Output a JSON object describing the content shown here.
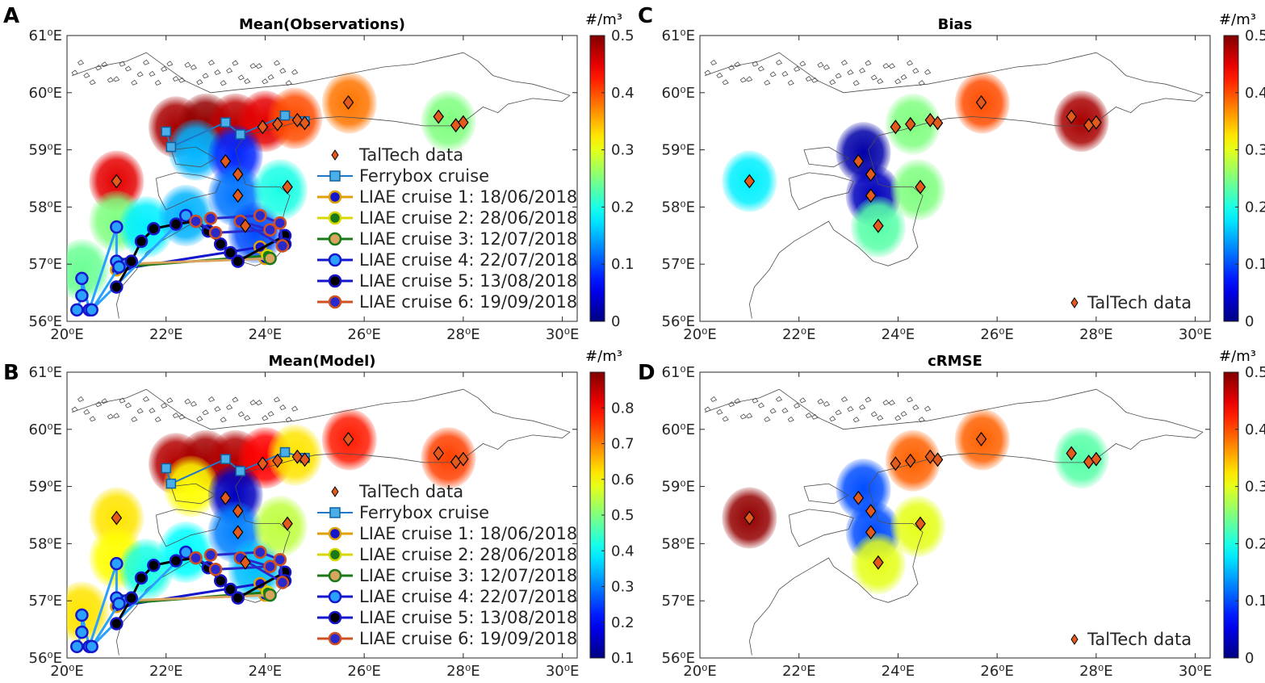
{
  "chart_data": [
    {
      "type": "map",
      "panel_label": "A",
      "title": "Mean(Observations)",
      "colorbar": {
        "unit": "#/m³",
        "min": 0,
        "max": 0.5,
        "ticks": [
          "0",
          "0.1",
          "0.2",
          "0.3",
          "0.4",
          "0.5"
        ]
      },
      "x_ticks": [
        "20⁰E",
        "22⁰E",
        "24⁰E",
        "26⁰E",
        "28⁰E",
        "30⁰E"
      ],
      "y_ticks": [
        "56⁰E",
        "57⁰E",
        "58⁰E",
        "59⁰E",
        "60⁰E",
        "61⁰E"
      ],
      "xlim": [
        20,
        30.3
      ],
      "ylim": [
        56,
        61
      ],
      "legend": [
        "TalTech data",
        "Ferrybox cruise",
        "LIAE cruise 1: 18/06/2018",
        "LIAE cruise 2: 28/06/2018",
        "LIAE cruise 3: 12/07/2018",
        "LIAE cruise 4: 22/07/2018",
        "LIAE cruise 5: 13/08/2018",
        "LIAE cruise 6: 19/09/2018"
      ],
      "blobs": [
        {
          "lon": 21.0,
          "lat": 58.45,
          "value": 0.45
        },
        {
          "lon": 21.0,
          "lat": 57.75,
          "value": 0.25
        },
        {
          "lon": 20.3,
          "lat": 56.9,
          "value": 0.24
        },
        {
          "lon": 21.6,
          "lat": 57.65,
          "value": 0.18
        },
        {
          "lon": 22.4,
          "lat": 57.85,
          "value": 0.15
        },
        {
          "lon": 22.2,
          "lat": 59.4,
          "value": 0.48
        },
        {
          "lon": 22.8,
          "lat": 59.45,
          "value": 0.49
        },
        {
          "lon": 23.4,
          "lat": 59.45,
          "value": 0.47
        },
        {
          "lon": 24.0,
          "lat": 59.5,
          "value": 0.45
        },
        {
          "lon": 24.6,
          "lat": 59.55,
          "value": 0.4
        },
        {
          "lon": 22.6,
          "lat": 59.0,
          "value": 0.15
        },
        {
          "lon": 23.4,
          "lat": 58.9,
          "value": 0.08
        },
        {
          "lon": 23.4,
          "lat": 58.2,
          "value": 0.12
        },
        {
          "lon": 23.8,
          "lat": 57.55,
          "value": 0.1
        },
        {
          "lon": 24.3,
          "lat": 58.3,
          "value": 0.2
        },
        {
          "lon": 25.7,
          "lat": 59.82,
          "value": 0.38
        },
        {
          "lon": 27.7,
          "lat": 59.5,
          "value": 0.25
        }
      ],
      "taltech": [
        [
          21.0,
          58.45
        ],
        [
          23.2,
          58.8
        ],
        [
          23.45,
          58.57
        ],
        [
          23.45,
          58.2
        ],
        [
          23.6,
          57.67
        ],
        [
          24.45,
          58.35
        ],
        [
          23.95,
          59.4
        ],
        [
          24.25,
          59.45
        ],
        [
          24.65,
          59.52
        ],
        [
          24.8,
          59.47
        ],
        [
          25.68,
          59.83
        ],
        [
          27.5,
          59.58
        ],
        [
          27.85,
          59.43
        ],
        [
          28.0,
          59.48
        ]
      ],
      "ferrybox": [
        [
          22.0,
          59.32
        ],
        [
          22.1,
          59.05
        ],
        [
          23.2,
          59.48
        ],
        [
          23.5,
          59.27
        ],
        [
          24.4,
          59.6
        ],
        [
          24.8,
          59.5
        ]
      ],
      "cruises": [
        {
          "color": "#1515cc",
          "edge": "#e0a000",
          "points": [
            [
              21.0,
              56.9
            ],
            [
              23.9,
              57.3
            ],
            [
              24.0,
              57.1
            ]
          ]
        },
        {
          "color": "#1a7a1a",
          "edge": "#d8d800",
          "points": [
            [
              21.05,
              56.95
            ],
            [
              24.05,
              57.15
            ]
          ]
        },
        {
          "color": "#d9a55e",
          "edge": "#1a7a1a",
          "points": [
            [
              21.1,
              57.0
            ],
            [
              24.1,
              57.1
            ]
          ]
        },
        {
          "color": "#2aa0ff",
          "edge": "#1515cc",
          "points": [
            [
              20.2,
              56.2
            ],
            [
              20.3,
              56.45
            ],
            [
              20.3,
              56.75
            ],
            [
              20.45,
              56.2
            ],
            [
              21.0,
              57.65
            ],
            [
              21.0,
              57.05
            ],
            [
              21.2,
              57.0
            ],
            [
              21.05,
              56.95
            ],
            [
              20.5,
              56.2
            ],
            [
              22.4,
              57.85
            ]
          ]
        },
        {
          "color": "#000000",
          "edge": "#1515cc",
          "points": [
            [
              21.0,
              56.6
            ],
            [
              21.3,
              57.05
            ],
            [
              21.5,
              57.4
            ],
            [
              21.75,
              57.62
            ],
            [
              22.2,
              57.7
            ],
            [
              22.6,
              57.75
            ],
            [
              22.85,
              57.58
            ],
            [
              23.1,
              57.35
            ],
            [
              23.3,
              57.2
            ],
            [
              23.45,
              57.05
            ],
            [
              24.4,
              57.5
            ],
            [
              24.4,
              57.35
            ]
          ]
        },
        {
          "color": "#2a2acc",
          "edge": "#d05020",
          "points": [
            [
              22.9,
              57.8
            ],
            [
              23.9,
              57.85
            ],
            [
              24.3,
              57.72
            ],
            [
              24.35,
              57.32
            ],
            [
              23.5,
              57.75
            ],
            [
              24.1,
              57.6
            ],
            [
              23.0,
              57.55
            ],
            [
              22.6,
              57.75
            ]
          ]
        }
      ]
    },
    {
      "type": "map",
      "panel_label": "B",
      "title": "Mean(Model)",
      "colorbar": {
        "unit": "#/m³",
        "min": 0.1,
        "max": 0.9,
        "ticks": [
          "0.1",
          "0.2",
          "0.3",
          "0.4",
          "0.5",
          "0.6",
          "0.7",
          "0.8"
        ]
      },
      "x_ticks": [
        "20⁰E",
        "22⁰E",
        "24⁰E",
        "26⁰E",
        "28⁰E",
        "30⁰E"
      ],
      "y_ticks": [
        "56⁰E",
        "57⁰E",
        "58⁰E",
        "59⁰E",
        "60⁰E",
        "61⁰E"
      ],
      "xlim": [
        20,
        30.3
      ],
      "ylim": [
        56,
        61
      ],
      "legend": [
        "TalTech data",
        "Ferrybox cruise",
        "LIAE cruise 1: 18/06/2018",
        "LIAE cruise 2: 28/06/2018",
        "LIAE cruise 3: 12/07/2018",
        "LIAE cruise 4: 22/07/2018",
        "LIAE cruise 5: 13/08/2018",
        "LIAE cruise 6: 19/09/2018"
      ],
      "blobs": [
        {
          "lon": 21.0,
          "lat": 58.45,
          "value": 0.62
        },
        {
          "lon": 21.0,
          "lat": 57.75,
          "value": 0.6
        },
        {
          "lon": 20.3,
          "lat": 56.8,
          "value": 0.62
        },
        {
          "lon": 21.6,
          "lat": 57.55,
          "value": 0.42
        },
        {
          "lon": 22.4,
          "lat": 57.85,
          "value": 0.4
        },
        {
          "lon": 22.2,
          "lat": 59.4,
          "value": 0.86
        },
        {
          "lon": 22.8,
          "lat": 59.45,
          "value": 0.87
        },
        {
          "lon": 23.4,
          "lat": 59.45,
          "value": 0.86
        },
        {
          "lon": 24.0,
          "lat": 59.5,
          "value": 0.8
        },
        {
          "lon": 24.6,
          "lat": 59.55,
          "value": 0.62
        },
        {
          "lon": 22.5,
          "lat": 59.0,
          "value": 0.6
        },
        {
          "lon": 23.4,
          "lat": 58.85,
          "value": 0.15
        },
        {
          "lon": 23.4,
          "lat": 58.2,
          "value": 0.3
        },
        {
          "lon": 23.8,
          "lat": 57.55,
          "value": 0.35
        },
        {
          "lon": 24.3,
          "lat": 58.3,
          "value": 0.55
        },
        {
          "lon": 25.7,
          "lat": 59.82,
          "value": 0.78
        },
        {
          "lon": 27.7,
          "lat": 59.5,
          "value": 0.75
        }
      ],
      "taltech": [
        [
          21.0,
          58.45
        ],
        [
          23.2,
          58.8
        ],
        [
          23.45,
          58.57
        ],
        [
          23.45,
          58.2
        ],
        [
          23.6,
          57.67
        ],
        [
          24.45,
          58.35
        ],
        [
          23.95,
          59.4
        ],
        [
          24.25,
          59.45
        ],
        [
          24.65,
          59.52
        ],
        [
          24.8,
          59.47
        ],
        [
          25.68,
          59.83
        ],
        [
          27.5,
          59.58
        ],
        [
          27.85,
          59.43
        ],
        [
          28.0,
          59.48
        ]
      ],
      "ferrybox": [
        [
          22.0,
          59.32
        ],
        [
          22.1,
          59.05
        ],
        [
          23.2,
          59.48
        ],
        [
          23.5,
          59.27
        ],
        [
          24.4,
          59.6
        ],
        [
          24.8,
          59.5
        ]
      ],
      "cruises": [
        {
          "color": "#1515cc",
          "edge": "#e0a000",
          "points": [
            [
              21.0,
              56.9
            ],
            [
              23.9,
              57.3
            ],
            [
              24.0,
              57.1
            ]
          ]
        },
        {
          "color": "#1a7a1a",
          "edge": "#d8d800",
          "points": [
            [
              21.05,
              56.95
            ],
            [
              24.05,
              57.15
            ]
          ]
        },
        {
          "color": "#d9a55e",
          "edge": "#1a7a1a",
          "points": [
            [
              21.1,
              57.0
            ],
            [
              24.1,
              57.1
            ]
          ]
        },
        {
          "color": "#2aa0ff",
          "edge": "#1515cc",
          "points": [
            [
              20.2,
              56.2
            ],
            [
              20.3,
              56.45
            ],
            [
              20.3,
              56.75
            ],
            [
              20.45,
              56.2
            ],
            [
              21.0,
              57.65
            ],
            [
              21.0,
              57.05
            ],
            [
              21.2,
              57.0
            ],
            [
              21.05,
              56.95
            ],
            [
              20.5,
              56.2
            ],
            [
              22.4,
              57.85
            ]
          ]
        },
        {
          "color": "#000000",
          "edge": "#1515cc",
          "points": [
            [
              21.0,
              56.6
            ],
            [
              21.3,
              57.05
            ],
            [
              21.5,
              57.4
            ],
            [
              21.75,
              57.62
            ],
            [
              22.2,
              57.7
            ],
            [
              22.6,
              57.75
            ],
            [
              22.85,
              57.58
            ],
            [
              23.1,
              57.35
            ],
            [
              23.3,
              57.2
            ],
            [
              23.45,
              57.05
            ],
            [
              24.4,
              57.5
            ],
            [
              24.4,
              57.35
            ]
          ]
        },
        {
          "color": "#2a2acc",
          "edge": "#d05020",
          "points": [
            [
              22.9,
              57.8
            ],
            [
              23.9,
              57.85
            ],
            [
              24.3,
              57.72
            ],
            [
              24.35,
              57.32
            ],
            [
              23.5,
              57.75
            ],
            [
              24.1,
              57.6
            ],
            [
              23.0,
              57.55
            ],
            [
              22.6,
              57.75
            ]
          ]
        }
      ]
    },
    {
      "type": "map",
      "panel_label": "C",
      "title": "Bias",
      "colorbar": {
        "unit": "#/m³",
        "min": 0,
        "max": 0.5,
        "ticks": [
          "0",
          "0.1",
          "0.2",
          "0.3",
          "0.4",
          "0.5"
        ]
      },
      "x_ticks": [
        "20⁰E",
        "22⁰E",
        "24⁰E",
        "26⁰E",
        "28⁰E",
        "30⁰E"
      ],
      "y_ticks": [
        "56⁰E",
        "57⁰E",
        "58⁰E",
        "59⁰E",
        "60⁰E",
        "61⁰E"
      ],
      "xlim": [
        20,
        30.3
      ],
      "ylim": [
        56,
        61
      ],
      "legend": [
        "TalTech data"
      ],
      "blobs": [
        {
          "lon": 21.0,
          "lat": 58.45,
          "value": 0.18
        },
        {
          "lon": 23.3,
          "lat": 58.95,
          "value": 0.02
        },
        {
          "lon": 23.5,
          "lat": 58.2,
          "value": 0.03
        },
        {
          "lon": 23.6,
          "lat": 57.65,
          "value": 0.23
        },
        {
          "lon": 24.4,
          "lat": 58.3,
          "value": 0.25
        },
        {
          "lon": 24.3,
          "lat": 59.45,
          "value": 0.25
        },
        {
          "lon": 25.7,
          "lat": 59.82,
          "value": 0.4
        },
        {
          "lon": 27.7,
          "lat": 59.5,
          "value": 0.48
        }
      ],
      "taltech": [
        [
          21.0,
          58.45
        ],
        [
          23.2,
          58.8
        ],
        [
          23.45,
          58.57
        ],
        [
          23.45,
          58.2
        ],
        [
          23.6,
          57.67
        ],
        [
          24.45,
          58.35
        ],
        [
          23.95,
          59.4
        ],
        [
          24.25,
          59.45
        ],
        [
          24.65,
          59.52
        ],
        [
          24.8,
          59.47
        ],
        [
          25.68,
          59.83
        ],
        [
          27.5,
          59.58
        ],
        [
          27.85,
          59.43
        ],
        [
          28.0,
          59.48
        ]
      ],
      "ferrybox": [],
      "cruises": []
    },
    {
      "type": "map",
      "panel_label": "D",
      "title": "cRMSE",
      "colorbar": {
        "unit": "#/m³",
        "min": 0,
        "max": 0.5,
        "ticks": [
          "0",
          "0.1",
          "0.2",
          "0.3",
          "0.4",
          "0.5"
        ]
      },
      "x_ticks": [
        "20⁰E",
        "22⁰E",
        "24⁰E",
        "26⁰E",
        "28⁰E",
        "30⁰E"
      ],
      "y_ticks": [
        "56⁰E",
        "57⁰E",
        "58⁰E",
        "59⁰E",
        "60⁰E",
        "61⁰E"
      ],
      "xlim": [
        20,
        30.3
      ],
      "ylim": [
        56,
        61
      ],
      "legend": [
        "TalTech data"
      ],
      "blobs": [
        {
          "lon": 21.0,
          "lat": 58.45,
          "value": 0.49
        },
        {
          "lon": 23.3,
          "lat": 58.95,
          "value": 0.1
        },
        {
          "lon": 23.5,
          "lat": 58.2,
          "value": 0.1
        },
        {
          "lon": 23.6,
          "lat": 57.65,
          "value": 0.3
        },
        {
          "lon": 24.4,
          "lat": 58.3,
          "value": 0.3
        },
        {
          "lon": 24.3,
          "lat": 59.45,
          "value": 0.39
        },
        {
          "lon": 25.7,
          "lat": 59.82,
          "value": 0.39
        },
        {
          "lon": 27.7,
          "lat": 59.5,
          "value": 0.23
        }
      ],
      "taltech": [
        [
          21.0,
          58.45
        ],
        [
          23.2,
          58.8
        ],
        [
          23.45,
          58.57
        ],
        [
          23.45,
          58.2
        ],
        [
          23.6,
          57.67
        ],
        [
          24.45,
          58.35
        ],
        [
          23.95,
          59.4
        ],
        [
          24.25,
          59.45
        ],
        [
          24.65,
          59.52
        ],
        [
          24.8,
          59.47
        ],
        [
          25.68,
          59.83
        ],
        [
          27.5,
          59.58
        ],
        [
          27.85,
          59.43
        ],
        [
          28.0,
          59.48
        ]
      ],
      "ferrybox": [],
      "cruises": []
    }
  ]
}
